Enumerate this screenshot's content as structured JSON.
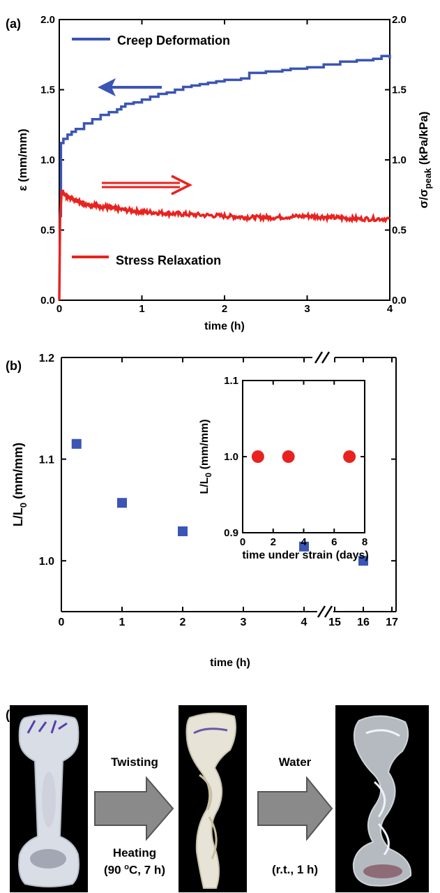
{
  "chart_data": [
    {
      "panel": "(a)",
      "type": "line",
      "xlabel": "time (h)",
      "ylabel_left": "ε (mm/mm)",
      "ylabel_right_main": "σ/σ",
      "ylabel_right_sub": "peak",
      "ylabel_right_tail": " (kPa/kPa)",
      "xlim": [
        0,
        4
      ],
      "ylim_left": [
        0.0,
        2.0
      ],
      "ylim_right": [
        0.0,
        2.0
      ],
      "xticks": [
        "0",
        "1",
        "2",
        "3",
        "4"
      ],
      "yticks_left": [
        "0.0",
        "0.5",
        "1.0",
        "1.5",
        "2.0"
      ],
      "yticks_right": [
        "0.0",
        "0.5",
        "1.0",
        "1.5",
        "2.0"
      ],
      "legend_placement": "inside, top-left and bottom-left",
      "series": [
        {
          "name": "Creep Deformation",
          "color": "#3b55b5",
          "axis": "left",
          "x": [
            0,
            0.02,
            0.05,
            0.1,
            0.15,
            0.2,
            0.3,
            0.4,
            0.5,
            0.6,
            0.7,
            0.75,
            0.8,
            0.9,
            1.0,
            1.1,
            1.2,
            1.3,
            1.4,
            1.5,
            1.6,
            1.7,
            1.8,
            1.9,
            2.0,
            2.2,
            2.3,
            2.5,
            2.7,
            2.8,
            3.0,
            3.2,
            3.4,
            3.6,
            3.8,
            3.9,
            4.0
          ],
          "y": [
            0.6,
            1.12,
            1.15,
            1.18,
            1.2,
            1.22,
            1.26,
            1.29,
            1.32,
            1.34,
            1.36,
            1.38,
            1.4,
            1.41,
            1.43,
            1.45,
            1.47,
            1.48,
            1.5,
            1.52,
            1.53,
            1.54,
            1.55,
            1.56,
            1.57,
            1.58,
            1.62,
            1.63,
            1.64,
            1.65,
            1.66,
            1.68,
            1.7,
            1.71,
            1.72,
            1.74,
            1.72
          ]
        },
        {
          "name": "Stress Relaxation",
          "color": "#e8231f",
          "axis": "right",
          "x": [
            0,
            0.01,
            0.03,
            0.05,
            0.1,
            0.2,
            0.3,
            0.5,
            0.7,
            1.0,
            1.3,
            1.6,
            2.0,
            2.3,
            2.6,
            3.0,
            3.3,
            3.6,
            4.0
          ],
          "y": [
            0.0,
            0.6,
            0.78,
            0.76,
            0.74,
            0.71,
            0.69,
            0.67,
            0.65,
            0.63,
            0.62,
            0.61,
            0.6,
            0.59,
            0.59,
            0.6,
            0.59,
            0.58,
            0.58
          ]
        }
      ],
      "annotations": [
        "left arrow on creep curve",
        "right arrow on relaxation curve"
      ]
    },
    {
      "panel": "(b)",
      "type": "scatter",
      "xlabel": "time (h)",
      "ylabel_main": "L/L",
      "ylabel_sub": "0",
      "ylabel_tail": " (mm/mm)",
      "xticks": [
        "0",
        "1",
        "2",
        "3",
        "4",
        "15",
        "16",
        "17"
      ],
      "yticks": [
        "1.0",
        "1.1",
        "1.2"
      ],
      "ylim": [
        0.95,
        1.2
      ],
      "axis_break": "//",
      "series": [
        {
          "color": "#3b55b5",
          "marker": "square",
          "x": [
            0.25,
            1,
            2,
            4,
            16
          ],
          "y": [
            1.115,
            1.057,
            1.029,
            1.014,
            1.0
          ]
        }
      ],
      "inset": {
        "type": "scatter",
        "xlabel": "time under strain (days)",
        "ylabel_main": "L/L",
        "ylabel_sub": "0",
        "ylabel_tail": " (mm/mm)",
        "xlim": [
          0,
          8
        ],
        "ylim": [
          0.9,
          1.1
        ],
        "xticks": [
          "0",
          "2",
          "4",
          "6",
          "8"
        ],
        "yticks": [
          "0.9",
          "1.0",
          "1.1"
        ],
        "series": [
          {
            "color": "#e8231f",
            "marker": "circle",
            "x": [
              1,
              3,
              7
            ],
            "y": [
              1.0,
              1.0,
              1.0
            ]
          }
        ]
      }
    }
  ],
  "panel_c": {
    "label": "(c)",
    "step1_top": "Twisting",
    "step1_bottom_line1": "Heating",
    "step1_bottom_line2_pre": "(90 ",
    "step1_bottom_line2_sup": "o",
    "step1_bottom_line2_post": "C, 7 h)",
    "step2_top": "Water",
    "step2_bottom": "(r.t., 1 h)",
    "arrow_color": "#8a8a8a",
    "photo_background": "#000000"
  }
}
